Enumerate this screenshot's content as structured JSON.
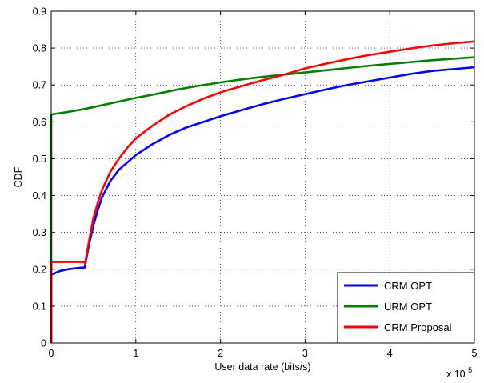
{
  "chart_data": {
    "type": "line",
    "xlabel": "User data rate (bits/s)",
    "ylabel": "CDF",
    "x_multiplier_label": "x 10",
    "x_multiplier_exponent": "5",
    "xlim": [
      0,
      5
    ],
    "ylim": [
      0,
      0.9
    ],
    "x_ticks": [
      "0",
      "1",
      "2",
      "3",
      "4",
      "5"
    ],
    "y_ticks": [
      "0",
      "0.1",
      "0.2",
      "0.3",
      "0.4",
      "0.5",
      "0.6",
      "0.7",
      "0.8",
      "0.9"
    ],
    "grid": true,
    "legend_position": "bottom-right",
    "series": [
      {
        "name": "CRM OPT",
        "color": "#0000ff",
        "points": [
          [
            0,
            0
          ],
          [
            0,
            0.185
          ],
          [
            0.1,
            0.195
          ],
          [
            0.2,
            0.2
          ],
          [
            0.3,
            0.203
          ],
          [
            0.4,
            0.205
          ],
          [
            0.4,
            0.21
          ],
          [
            0.45,
            0.27
          ],
          [
            0.5,
            0.32
          ],
          [
            0.55,
            0.36
          ],
          [
            0.6,
            0.395
          ],
          [
            0.7,
            0.44
          ],
          [
            0.8,
            0.47
          ],
          [
            0.9,
            0.49
          ],
          [
            1.0,
            0.51
          ],
          [
            1.2,
            0.54
          ],
          [
            1.4,
            0.565
          ],
          [
            1.6,
            0.585
          ],
          [
            1.8,
            0.6
          ],
          [
            2.0,
            0.615
          ],
          [
            2.25,
            0.632
          ],
          [
            2.5,
            0.648
          ],
          [
            2.75,
            0.662
          ],
          [
            3.0,
            0.675
          ],
          [
            3.25,
            0.688
          ],
          [
            3.5,
            0.7
          ],
          [
            3.75,
            0.71
          ],
          [
            4.0,
            0.72
          ],
          [
            4.25,
            0.73
          ],
          [
            4.5,
            0.738
          ],
          [
            4.75,
            0.743
          ],
          [
            5.0,
            0.748
          ]
        ]
      },
      {
        "name": "URM OPT",
        "color": "#008000",
        "points": [
          [
            0,
            0
          ],
          [
            0,
            0.62
          ],
          [
            0.2,
            0.627
          ],
          [
            0.4,
            0.635
          ],
          [
            0.6,
            0.645
          ],
          [
            0.8,
            0.655
          ],
          [
            1.0,
            0.665
          ],
          [
            1.25,
            0.676
          ],
          [
            1.5,
            0.688
          ],
          [
            1.75,
            0.698
          ],
          [
            2.0,
            0.707
          ],
          [
            2.25,
            0.715
          ],
          [
            2.5,
            0.722
          ],
          [
            2.75,
            0.728
          ],
          [
            3.0,
            0.734
          ],
          [
            3.25,
            0.74
          ],
          [
            3.5,
            0.746
          ],
          [
            3.75,
            0.752
          ],
          [
            4.0,
            0.757
          ],
          [
            4.25,
            0.762
          ],
          [
            4.5,
            0.767
          ],
          [
            4.75,
            0.771
          ],
          [
            5.0,
            0.775
          ]
        ]
      },
      {
        "name": "CRM Proposal",
        "color": "#ff0000",
        "points": [
          [
            0,
            0
          ],
          [
            0,
            0.22
          ],
          [
            0.4,
            0.22
          ],
          [
            0.4,
            0.215
          ],
          [
            0.45,
            0.28
          ],
          [
            0.5,
            0.34
          ],
          [
            0.55,
            0.38
          ],
          [
            0.6,
            0.415
          ],
          [
            0.7,
            0.465
          ],
          [
            0.8,
            0.5
          ],
          [
            0.9,
            0.53
          ],
          [
            1.0,
            0.555
          ],
          [
            1.2,
            0.59
          ],
          [
            1.4,
            0.62
          ],
          [
            1.6,
            0.643
          ],
          [
            1.8,
            0.663
          ],
          [
            2.0,
            0.68
          ],
          [
            2.25,
            0.697
          ],
          [
            2.5,
            0.713
          ],
          [
            2.75,
            0.728
          ],
          [
            3.0,
            0.745
          ],
          [
            3.25,
            0.758
          ],
          [
            3.5,
            0.77
          ],
          [
            3.75,
            0.781
          ],
          [
            4.0,
            0.79
          ],
          [
            4.25,
            0.799
          ],
          [
            4.5,
            0.807
          ],
          [
            4.75,
            0.813
          ],
          [
            5.0,
            0.818
          ]
        ]
      }
    ]
  }
}
